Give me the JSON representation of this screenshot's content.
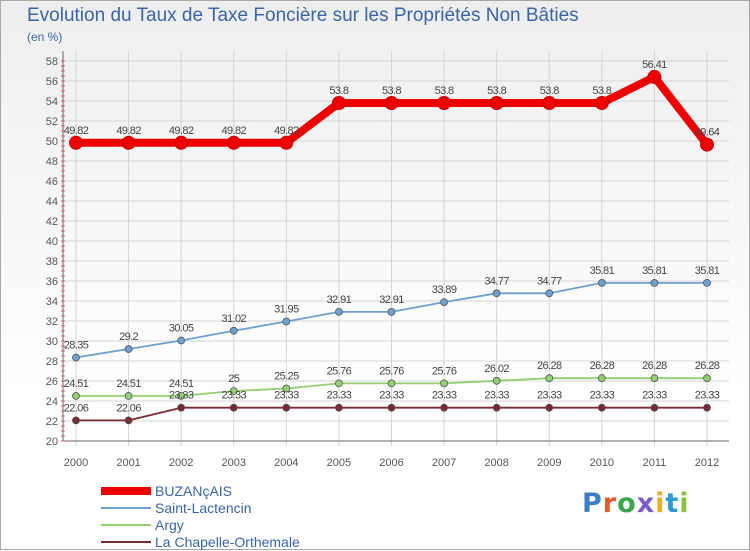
{
  "header": {
    "title": "Evolution du Taux de Taxe Foncière sur les Propriétés Non Bâties",
    "unit": "(en %)"
  },
  "brand": {
    "text": "Proxiti",
    "letter_colors": [
      "#3a7ec8",
      "#e85a2a",
      "#3aa84a",
      "#7a5cc8",
      "#e8b020",
      "#2a9ad0",
      "#8ac040"
    ]
  },
  "chart_data": {
    "type": "line",
    "title": "Evolution du Taux de Taxe Foncière sur les Propriétés Non Bâties",
    "ylabel": "(en %)",
    "xlabel": "",
    "x": [
      "2000",
      "2001",
      "2002",
      "2003",
      "2004",
      "2005",
      "2006",
      "2007",
      "2008",
      "2009",
      "2010",
      "2011",
      "2012"
    ],
    "yticks": [
      "20",
      "22",
      "24",
      "26",
      "28",
      "30",
      "32",
      "34",
      "36",
      "38",
      "40",
      "42",
      "44",
      "46",
      "48",
      "50",
      "52",
      "54",
      "56",
      "58"
    ],
    "ylim": [
      20,
      58
    ],
    "grid": true,
    "legend_position": "bottom-left",
    "series": [
      {
        "name": "BUZANçAIS",
        "color": "#ee0000",
        "emphasis": true,
        "values": [
          49.82,
          49.82,
          49.82,
          49.82,
          49.82,
          53.8,
          53.8,
          53.8,
          53.8,
          53.8,
          53.8,
          56.41,
          49.64
        ],
        "labels": [
          "49.82",
          "49.82",
          "49.82",
          "49.82",
          "49.82",
          "53.8",
          "53.8",
          "53.8",
          "53.8",
          "53.8",
          "53.8",
          "56.41",
          "49.64"
        ]
      },
      {
        "name": "Saint-Lactencin",
        "color": "#6fa0d0",
        "values": [
          28.35,
          29.2,
          30.05,
          31.02,
          31.95,
          32.91,
          32.91,
          33.89,
          34.77,
          34.77,
          35.81,
          35.81,
          35.81
        ],
        "labels": [
          "28.35",
          "29.2",
          "30.05",
          "31.02",
          "31.95",
          "32.91",
          "32.91",
          "33.89",
          "34.77",
          "34.77",
          "35.81",
          "35.81",
          "35.81"
        ]
      },
      {
        "name": "Argy",
        "color": "#90d070",
        "values": [
          24.51,
          24.51,
          24.51,
          25,
          25.25,
          25.76,
          25.76,
          25.76,
          26.02,
          26.28,
          26.28,
          26.28,
          26.28
        ],
        "labels": [
          "24.51",
          "24.51",
          "24.51",
          "25",
          "25.25",
          "25.76",
          "25.76",
          "25.76",
          "26.02",
          "26.28",
          "26.28",
          "26.28",
          "26.28"
        ]
      },
      {
        "name": "La Chapelle-Orthemale",
        "color": "#7a2a32",
        "values": [
          22.06,
          22.06,
          23.33,
          23.33,
          23.33,
          23.33,
          23.33,
          23.33,
          23.33,
          23.33,
          23.33,
          23.33,
          23.33
        ],
        "labels": [
          "22.06",
          "22.06",
          "23.33",
          "23.33",
          "23.33",
          "23.33",
          "23.33",
          "23.33",
          "23.33",
          "23.33",
          "23.33",
          "23.33",
          "23.33"
        ]
      }
    ]
  }
}
